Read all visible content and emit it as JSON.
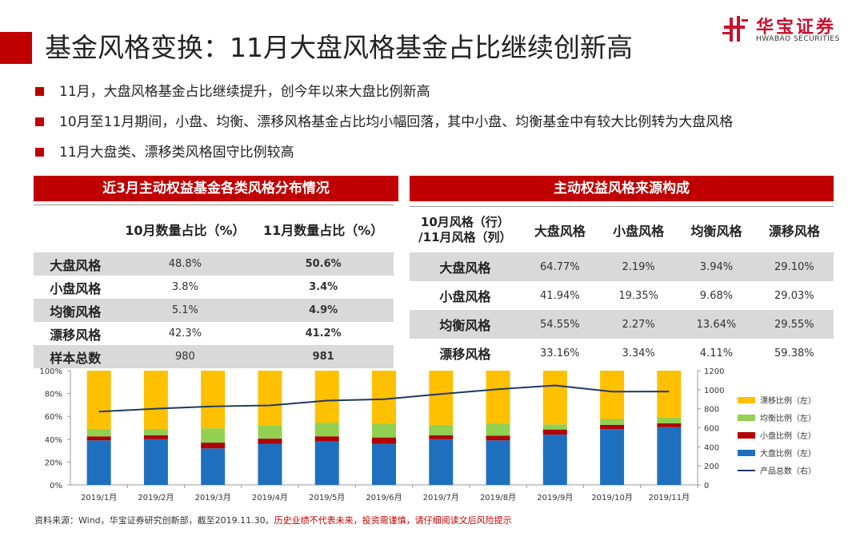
{
  "title": "基金风格变换：11月大盘风格基金占比继续创新高",
  "logo": {
    "cn": "华宝证券",
    "en": "HWABAO SECURITIES"
  },
  "bullets": [
    "11月，大盘风格基金占比继续提升，创今年以来大盘比例新高",
    "10月至11月期间，小盘、均衡、漂移风格基金占比均小幅回落，其中小盘、均衡基金中有较大比例转为大盘风格",
    "11月大盘类、漂移类风格固守比例较高"
  ],
  "table1": {
    "title": "近3月主动权益基金各类风格分布情况",
    "headers": [
      "",
      "10月数量占比（%）",
      "11月数量占比（%）"
    ],
    "rows": [
      [
        "大盘风格",
        "48.8%",
        "50.6%"
      ],
      [
        "小盘风格",
        "3.8%",
        "3.4%"
      ],
      [
        "均衡风格",
        "5.1%",
        "4.9%"
      ],
      [
        "漂移风格",
        "42.3%",
        "41.2%"
      ],
      [
        "样本总数",
        "980",
        "981"
      ]
    ]
  },
  "table2": {
    "title": "主动权益风格来源构成",
    "corner": [
      "10月风格（行）",
      "/11月风格（列）"
    ],
    "headers": [
      "大盘风格",
      "小盘风格",
      "均衡风格",
      "漂移风格"
    ],
    "rows": [
      [
        "大盘风格",
        "64.77%",
        "2.19%",
        "3.94%",
        "29.10%"
      ],
      [
        "小盘风格",
        "41.94%",
        "19.35%",
        "9.68%",
        "29.03%"
      ],
      [
        "均衡风格",
        "54.55%",
        "2.27%",
        "13.64%",
        "29.55%"
      ],
      [
        "漂移风格",
        "33.16%",
        "3.34%",
        "4.11%",
        "59.38%"
      ]
    ]
  },
  "chart_data": {
    "type": "bar",
    "stacked": true,
    "categories": [
      "2019/1月",
      "2019/2月",
      "2019/3月",
      "2019/4月",
      "2019/5月",
      "2019/6月",
      "2019/7月",
      "2019/8月",
      "2019/9月",
      "2019/10月",
      "2019/11月"
    ],
    "y_left": {
      "ticks": [
        "0%",
        "20%",
        "40%",
        "60%",
        "80%",
        "100%"
      ],
      "range": [
        0,
        100
      ]
    },
    "y_right": {
      "ticks": [
        "0",
        "200",
        "400",
        "600",
        "800",
        "1000",
        "1200"
      ],
      "range": [
        0,
        1200
      ]
    },
    "grid": false,
    "legend_position": "right",
    "series": [
      {
        "name": "大盘比例（左）",
        "color": "#1f6fbf",
        "axis": "left",
        "values": [
          39,
          40,
          32,
          36,
          38,
          36,
          40,
          39,
          44,
          48.8,
          50.6
        ]
      },
      {
        "name": "小盘比例（左）",
        "color": "#b00000",
        "axis": "left",
        "values": [
          3.5,
          3.5,
          5,
          4.5,
          4.5,
          5.5,
          3.5,
          4,
          4.5,
          3.8,
          3.4
        ]
      },
      {
        "name": "均衡比例（左）",
        "color": "#92d050",
        "axis": "left",
        "values": [
          6.5,
          5.5,
          12.5,
          11.5,
          12,
          12,
          9,
          11,
          4.5,
          5.1,
          4.9
        ]
      },
      {
        "name": "漂移比例（左）",
        "color": "#ffc000",
        "axis": "left",
        "values": [
          51,
          51,
          50.5,
          48,
          45.5,
          46.5,
          47.5,
          46,
          47,
          42.3,
          41.2
        ]
      },
      {
        "name": "产品总数（右）",
        "color": "#1f3864",
        "axis": "right",
        "type": "line",
        "values": [
          770,
          800,
          825,
          835,
          885,
          900,
          955,
          1005,
          1045,
          980,
          981
        ]
      }
    ]
  },
  "source": {
    "text": "资料来源：Wind，华宝证券研究创新部，截至2019.11.30。",
    "warning": "历史业绩不代表未来，投资需谨慎，请仔细阅读文后风险提示"
  }
}
